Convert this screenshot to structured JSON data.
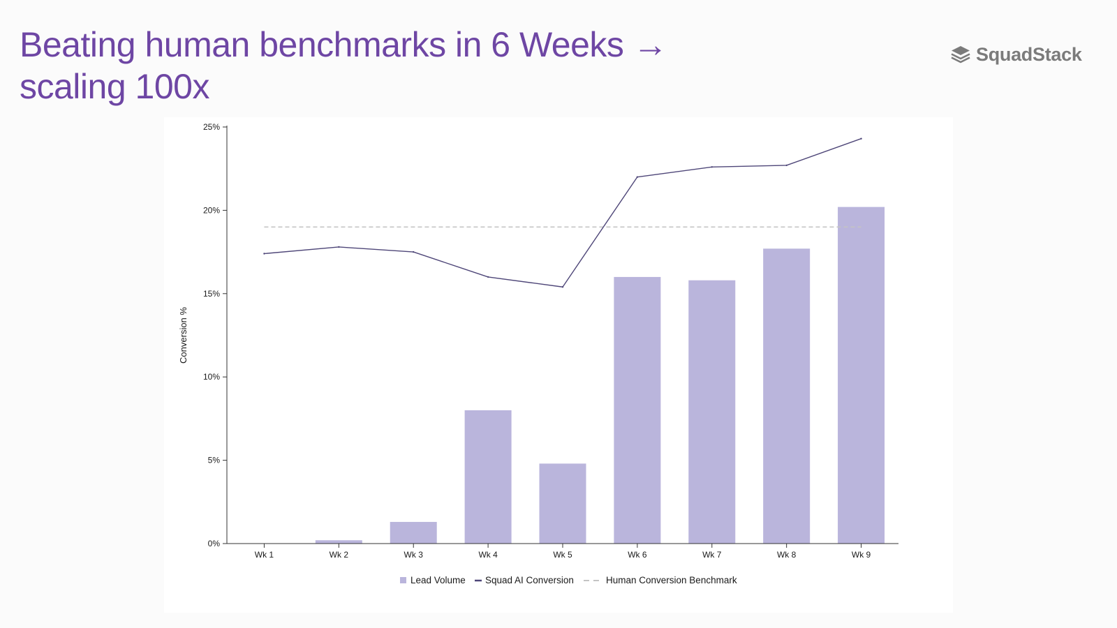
{
  "slide": {
    "title_line1": "Beating human benchmarks in 6 Weeks →",
    "title_line2": "scaling 100x"
  },
  "logo": {
    "text": "SquadStack",
    "icon": "stacked-layers-icon"
  },
  "colors": {
    "title": "#6e46a4",
    "bar": "#bab5dc",
    "line": "#4e4678",
    "benchmark": "#c4c4c4"
  },
  "chart_data": {
    "type": "bar",
    "categories": [
      "Wk 1",
      "Wk 2",
      "Wk 3",
      "Wk 4",
      "Wk 5",
      "Wk 6",
      "Wk 7",
      "Wk 8",
      "Wk 9"
    ],
    "ylabel": "Conversion %",
    "ylim": [
      0,
      25
    ],
    "yticks": [
      "0%",
      "5%",
      "10%",
      "15%",
      "20%",
      "25%"
    ],
    "grid": false,
    "legend_position": "bottom-center",
    "series": [
      {
        "name": "Lead Volume",
        "type": "bar",
        "values": [
          0,
          0.2,
          1.3,
          8.0,
          4.8,
          16.0,
          15.8,
          17.7,
          20.2
        ]
      },
      {
        "name": "Squad AI Conversion",
        "type": "line",
        "values": [
          17.4,
          17.8,
          17.5,
          16.0,
          15.4,
          22.0,
          22.6,
          22.7,
          24.3
        ]
      },
      {
        "name": "Human Conversion Benchmark",
        "type": "line-dashed",
        "values": [
          19,
          19,
          19,
          19,
          19,
          19,
          19,
          19,
          19
        ]
      }
    ]
  }
}
